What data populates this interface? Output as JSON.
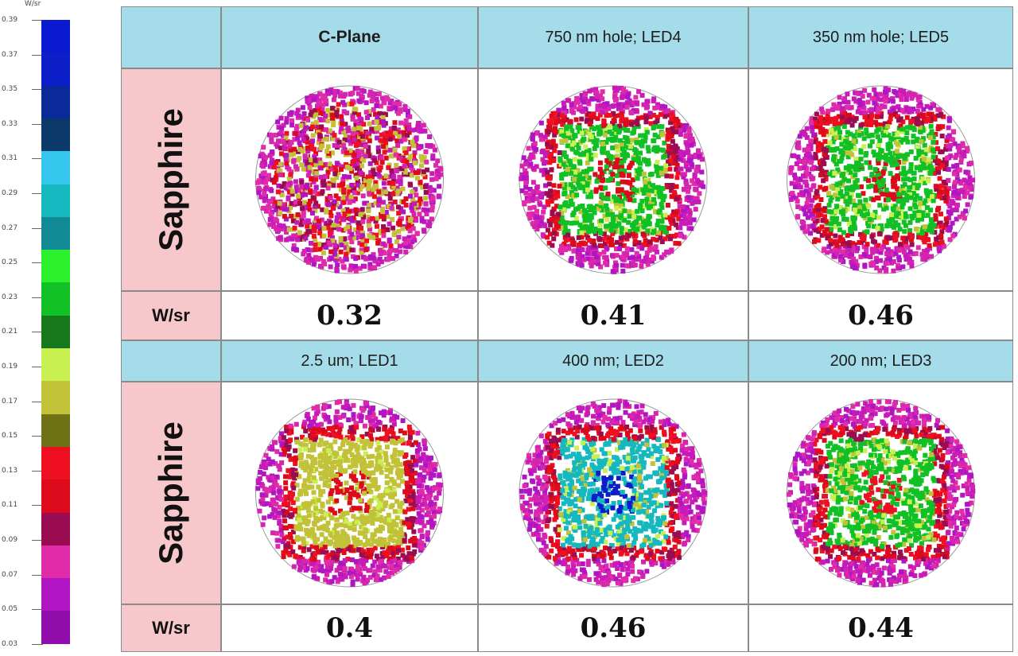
{
  "colorbar": {
    "unit": "W/sr",
    "ticks": [
      "0.39",
      "0.37",
      "0.35",
      "0.33",
      "0.31",
      "0.29",
      "0.27",
      "0.25",
      "0.23",
      "0.21",
      "0.19",
      "0.17",
      "0.15",
      "0.13",
      "0.11",
      "0.09",
      "0.07",
      "0.05",
      "0.03"
    ],
    "bands": [
      "#0a1ad0",
      "#0c1ec8",
      "#0a2a9a",
      "#0b3a6a",
      "#35c6ee",
      "#16b8c0",
      "#128a96",
      "#2bf02b",
      "#10c024",
      "#16781a",
      "#c8f050",
      "#c2c238",
      "#6e7214",
      "#ee1020",
      "#dc0a1a",
      "#9a0c52",
      "#e02ca8",
      "#b015c4",
      "#900cab"
    ]
  },
  "headers": {
    "row1": [
      "C-Plane",
      "750 nm hole; LED4",
      "350 nm hole; LED5"
    ],
    "row2": [
      "2.5 um; LED1",
      "400 nm; LED2",
      "200 nm; LED3"
    ]
  },
  "row_labels": {
    "top": "Sapphire",
    "bottom": "Sapphire"
  },
  "unit_label": "W/sr",
  "values": {
    "row1": [
      "0.32",
      "0.41",
      "0.46"
    ],
    "row2": [
      "0.4",
      "0.46",
      "0.44"
    ]
  },
  "plots": {
    "row1": [
      {
        "pattern": "uniform",
        "core": "#ee1020",
        "center": "#c2c238"
      },
      {
        "pattern": "square",
        "core": "#10c024",
        "center": "#dc0a1a"
      },
      {
        "pattern": "square",
        "core": "#10c024",
        "center": "#dc0a1a"
      }
    ],
    "row2": [
      {
        "pattern": "square",
        "core": "#c2c238",
        "center": "#dc0a1a"
      },
      {
        "pattern": "square",
        "core": "#16b8c0",
        "center": "#0c1ec8"
      },
      {
        "pattern": "square",
        "core": "#10c024",
        "center": "#ee1020"
      }
    ]
  }
}
